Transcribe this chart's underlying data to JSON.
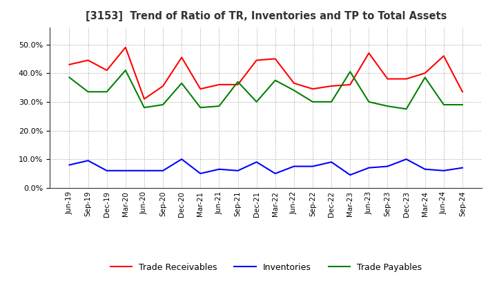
{
  "title": "[3153]  Trend of Ratio of TR, Inventories and TP to Total Assets",
  "x_labels": [
    "Jun-19",
    "Sep-19",
    "Dec-19",
    "Mar-20",
    "Jun-20",
    "Sep-20",
    "Dec-20",
    "Mar-21",
    "Jun-21",
    "Sep-21",
    "Dec-21",
    "Mar-22",
    "Jun-22",
    "Sep-22",
    "Dec-22",
    "Mar-23",
    "Jun-23",
    "Sep-23",
    "Dec-23",
    "Mar-24",
    "Jun-24",
    "Sep-24"
  ],
  "trade_receivables": [
    0.43,
    0.445,
    0.41,
    0.49,
    0.31,
    0.355,
    0.455,
    0.345,
    0.36,
    0.36,
    0.445,
    0.45,
    0.365,
    0.345,
    0.355,
    0.36,
    0.47,
    0.38,
    0.38,
    0.4,
    0.46,
    0.335
  ],
  "inventories": [
    0.08,
    0.095,
    0.06,
    0.06,
    0.06,
    0.06,
    0.1,
    0.05,
    0.065,
    0.06,
    0.09,
    0.05,
    0.075,
    0.075,
    0.09,
    0.045,
    0.07,
    0.075,
    0.1,
    0.065,
    0.06,
    0.07
  ],
  "trade_payables": [
    0.385,
    0.335,
    0.335,
    0.41,
    0.28,
    0.29,
    0.365,
    0.28,
    0.285,
    0.37,
    0.3,
    0.375,
    0.34,
    0.3,
    0.3,
    0.405,
    0.3,
    0.285,
    0.275,
    0.385,
    0.29,
    0.29
  ],
  "tr_color": "#FF0000",
  "inv_color": "#0000FF",
  "tp_color": "#008000",
  "ylim": [
    0.0,
    0.56
  ],
  "yticks": [
    0.0,
    0.1,
    0.2,
    0.3,
    0.4,
    0.5
  ],
  "background_color": "#FFFFFF",
  "grid_color": "#999999"
}
